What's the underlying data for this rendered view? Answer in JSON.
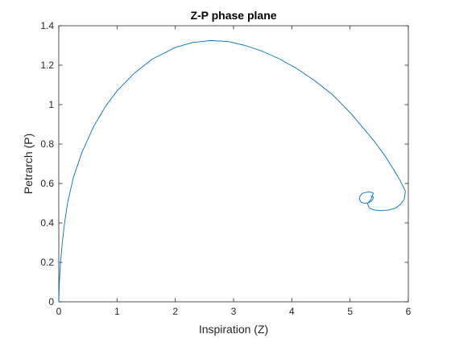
{
  "chart_data": {
    "type": "line",
    "title": "Z-P phase plane",
    "xlabel": "Inspiration (Z)",
    "ylabel": "Petrarch (P)",
    "xlim": [
      0,
      6
    ],
    "ylim": [
      0,
      1.4
    ],
    "xticks": [
      "0",
      "1",
      "2",
      "3",
      "4",
      "5",
      "6"
    ],
    "yticks": [
      "0",
      "0.2",
      "0.4",
      "0.6",
      "0.8",
      "1",
      "1.2",
      "1.4"
    ],
    "grid": false,
    "series": [
      {
        "color": "#0072BD",
        "x": [
          0.0,
          0.01,
          0.03,
          0.06,
          0.1,
          0.15,
          0.25,
          0.4,
          0.6,
          0.8,
          1.0,
          1.3,
          1.6,
          2.0,
          2.3,
          2.6,
          2.9,
          3.2,
          3.5,
          3.8,
          4.1,
          4.4,
          4.7,
          5.0,
          5.2,
          5.4,
          5.6,
          5.75,
          5.85,
          5.92,
          5.95,
          5.93,
          5.87,
          5.78,
          5.66,
          5.53,
          5.42,
          5.35,
          5.32,
          5.3,
          5.32,
          5.36,
          5.38,
          5.4,
          5.37,
          5.33,
          5.27,
          5.21,
          5.17,
          5.16,
          5.19,
          5.25,
          5.31,
          5.36,
          5.39,
          5.4,
          5.38,
          5.36
        ],
        "y": [
          0.0,
          0.1,
          0.2,
          0.3,
          0.4,
          0.5,
          0.63,
          0.76,
          0.89,
          0.99,
          1.07,
          1.16,
          1.23,
          1.29,
          1.315,
          1.325,
          1.32,
          1.3,
          1.27,
          1.23,
          1.18,
          1.12,
          1.05,
          0.96,
          0.89,
          0.82,
          0.74,
          0.67,
          0.62,
          0.58,
          0.56,
          0.52,
          0.495,
          0.475,
          0.465,
          0.462,
          0.465,
          0.472,
          0.48,
          0.5,
          0.505,
          0.52,
          0.537,
          0.55,
          0.555,
          0.557,
          0.555,
          0.55,
          0.535,
          0.52,
          0.505,
          0.5,
          0.502,
          0.51,
          0.52,
          0.53,
          0.535,
          0.535
        ]
      }
    ]
  }
}
